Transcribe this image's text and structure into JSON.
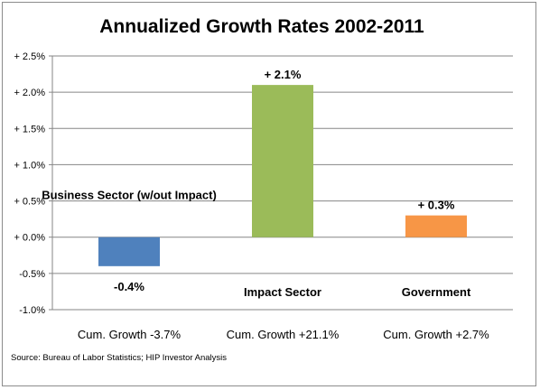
{
  "chart_data": {
    "type": "bar",
    "title": "Annualized Growth Rates 2002-2011",
    "categories": [
      "Business Sector (w/out Impact)",
      "Impact Sector",
      "Government"
    ],
    "values": [
      -0.4,
      2.1,
      0.3
    ],
    "data_labels": [
      "-0.4%",
      "+ 2.1%",
      "+ 0.3%"
    ],
    "colors": [
      "#4f81bd",
      "#9bbb59",
      "#f79646"
    ],
    "cumulative_labels": [
      "Cum. Growth  -3.7%",
      "Cum. Growth  +21.1%",
      "Cum. Growth  +2.7%"
    ],
    "ylim": [
      -1.0,
      2.5
    ],
    "yticks": [
      {
        "value": 2.5,
        "label": "+ 2.5%"
      },
      {
        "value": 2.0,
        "label": "+ 2.0%"
      },
      {
        "value": 1.5,
        "label": "+ 1.5%"
      },
      {
        "value": 1.0,
        "label": "+ 1.0%"
      },
      {
        "value": 0.5,
        "label": "+ 0.5%"
      },
      {
        "value": 0.0,
        "label": "+ 0.0%"
      },
      {
        "value": -0.5,
        "label": "-0.5%"
      },
      {
        "value": -1.0,
        "label": "-1.0%"
      }
    ],
    "grid": true,
    "xlabel": "",
    "ylabel": "",
    "source": "Source: Bureau of Labor Statistics; HIP Investor Analysis"
  }
}
